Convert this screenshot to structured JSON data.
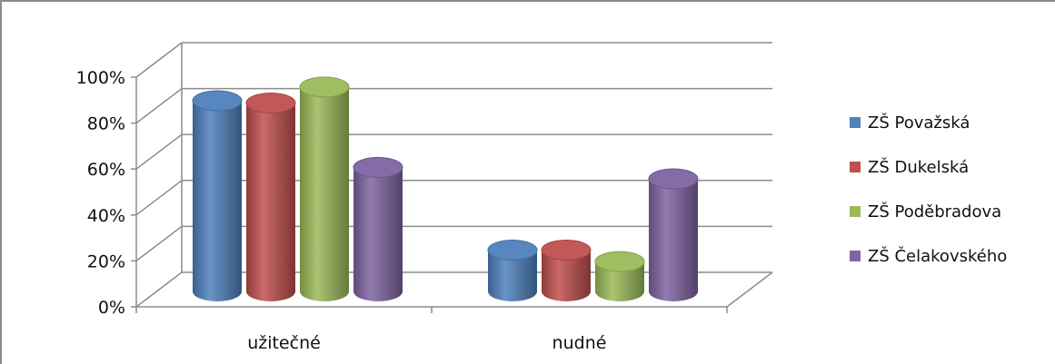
{
  "chart_data": {
    "type": "bar",
    "style": "3d-cylinder",
    "categories": [
      "užitečné",
      "nudné"
    ],
    "series": [
      {
        "name": "ZŠ Považská",
        "values": [
          83,
          18
        ],
        "color": "#4F81BD"
      },
      {
        "name": "ZŠ Dukelská",
        "values": [
          82,
          18
        ],
        "color": "#C0504D"
      },
      {
        "name": "ZŠ Poděbradova",
        "values": [
          89,
          13
        ],
        "color": "#9BBB59"
      },
      {
        "name": "ZŠ Čelakovského",
        "values": [
          54,
          49
        ],
        "color": "#8064A2"
      }
    ],
    "ylim": [
      0,
      100
    ],
    "yticks": [
      "0%",
      "20%",
      "40%",
      "60%",
      "80%",
      "100%"
    ],
    "grid": true,
    "legend_position": "right"
  }
}
